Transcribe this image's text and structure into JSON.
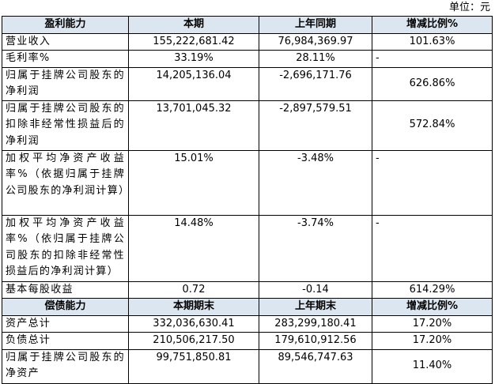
{
  "unit": "单位：元",
  "sections": [
    {
      "header": [
        "盈利能力",
        "本期",
        "上年同期",
        "增减比例%"
      ],
      "rows": [
        [
          "营业收入",
          "155,222,681.42",
          "76,984,369.97",
          "101.63%"
        ],
        [
          "毛利率%",
          "33.19%",
          "28.11%",
          "-"
        ],
        [
          "归属于挂牌公司股东的净利润",
          "14,205,136.04",
          "-2,696,171.76",
          "626.86%"
        ],
        [
          "归属于挂牌公司股东的扣除非经常性损益后的净利润",
          "13,701,045.32",
          "-2,897,579.51",
          "572.84%"
        ],
        [
          "加权平均净资产收益率%（依据归属于挂牌公司股东的净利润计算）",
          "15.01%",
          "-3.48%",
          "-"
        ],
        [
          "加权平均净资产收益率%（依归属于挂牌公司股东的扣除非经常性损益后的净利润计算）",
          "14.48%",
          "-3.74%",
          "-"
        ],
        [
          "基本每股收益",
          "0.72",
          "-0.14",
          "614.29%"
        ]
      ]
    },
    {
      "header": [
        "偿债能力",
        "本期期末",
        "上年期末",
        "增减比例%"
      ],
      "rows": [
        [
          "资产总计",
          "332,036,630.41",
          "283,299,180.41",
          "17.20%"
        ],
        [
          "负债总计",
          "210,506,217.50",
          "179,610,912.56",
          "17.20%"
        ],
        [
          "归属于挂牌公司股东的净资产",
          "99,751,850.81",
          "89,546,747.63",
          "11.40%"
        ]
      ]
    }
  ]
}
